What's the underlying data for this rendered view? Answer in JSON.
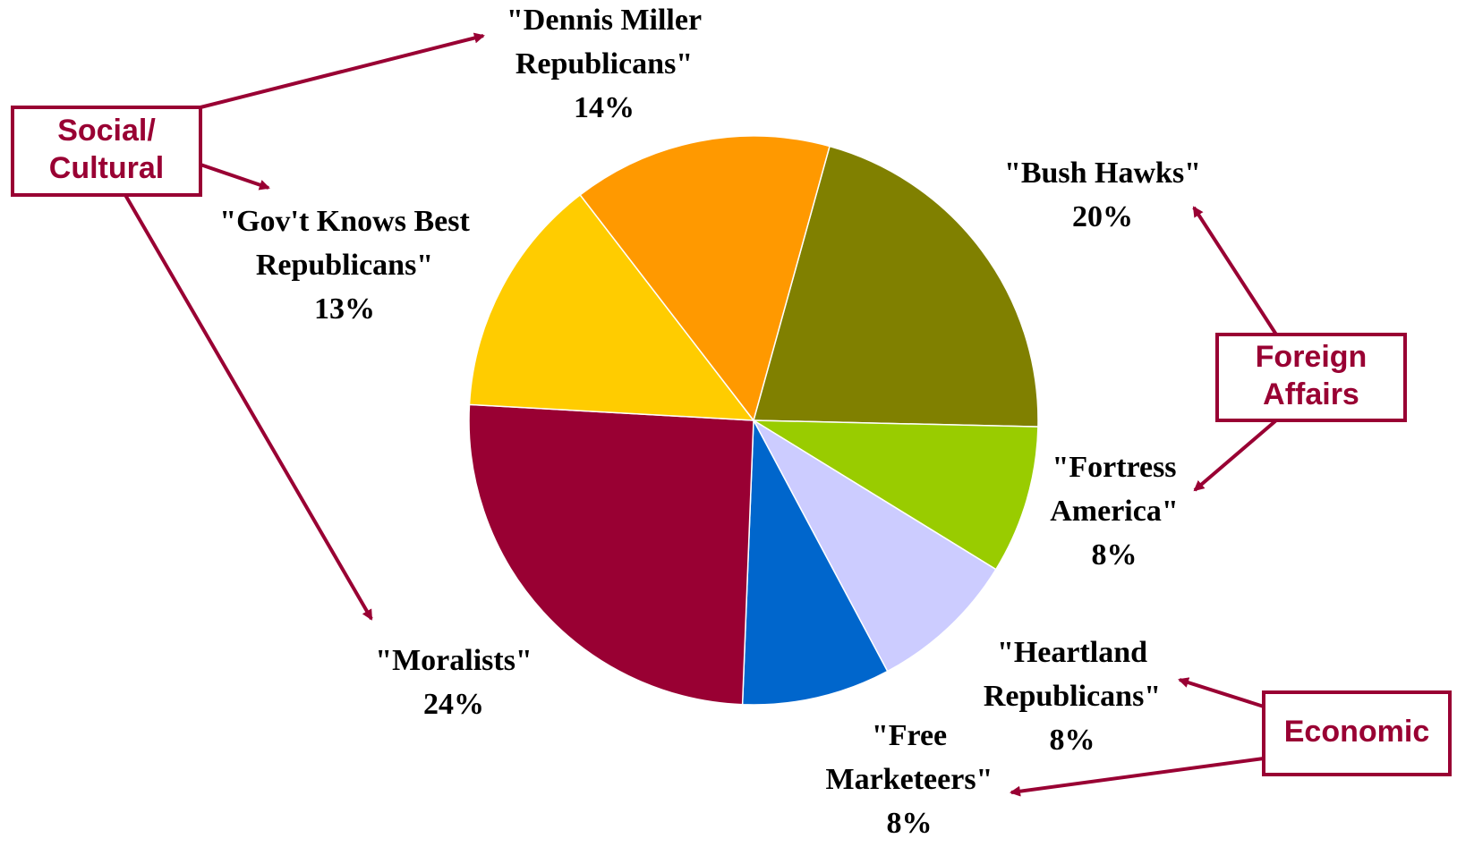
{
  "chart_data": {
    "type": "pie",
    "slices": [
      {
        "label_lines": [
          "\"Bush Hawks\""
        ],
        "value": 20,
        "value_label": "20%",
        "color": "#808000"
      },
      {
        "label_lines": [
          "\"Fortress",
          "America\""
        ],
        "value": 8,
        "value_label": "8%",
        "color": "#99CC00"
      },
      {
        "label_lines": [
          "\"Heartland",
          "Republicans\""
        ],
        "value": 8,
        "value_label": "8%",
        "color": "#CCCCFF"
      },
      {
        "label_lines": [
          "\"Free",
          "Marketeers\""
        ],
        "value": 8,
        "value_label": "8%",
        "color": "#0066CC"
      },
      {
        "label_lines": [
          "\"Moralists\""
        ],
        "value": 24,
        "value_label": "24%",
        "color": "#990033"
      },
      {
        "label_lines": [
          "\"Gov't Knows Best",
          "Republicans\""
        ],
        "value": 13,
        "value_label": "13%",
        "color": "#FFCC00"
      },
      {
        "label_lines": [
          "\"Dennis Miller",
          "Republicans\""
        ],
        "value": 14,
        "value_label": "14%",
        "color": "#FF9900"
      }
    ],
    "categories": [
      {
        "label_lines": [
          "Social/",
          "Cultural"
        ],
        "members": [
          "\"Dennis Miller Republicans\"",
          "\"Gov't Knows Best Republicans\"",
          "\"Moralists\""
        ]
      },
      {
        "label_lines": [
          "Foreign",
          "Affairs"
        ],
        "members": [
          "\"Bush Hawks\"",
          "\"Fortress America\""
        ]
      },
      {
        "label_lines": [
          "Economic"
        ],
        "members": [
          "\"Heartland Republicans\"",
          "\"Free Marketeers\""
        ]
      }
    ],
    "accent_color": "#990033",
    "slice_border_color": "#FFFFFF"
  }
}
